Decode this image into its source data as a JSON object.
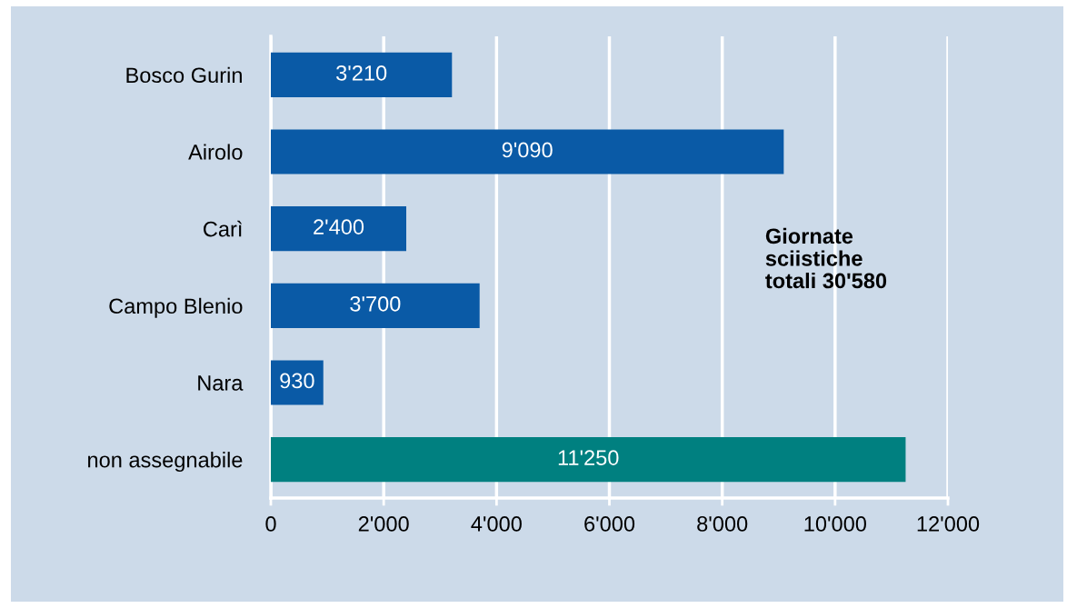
{
  "chart_data": {
    "type": "bar",
    "orientation": "horizontal",
    "categories": [
      "Bosco Gurin",
      "Airolo",
      "Carì",
      "Campo Blenio",
      "Nara",
      "non assegnabile"
    ],
    "values": [
      3210,
      9090,
      2400,
      3700,
      930,
      11250
    ],
    "colors": [
      "#0a5aa6",
      "#0a5aa6",
      "#0a5aa6",
      "#0a5aa6",
      "#0a5aa6",
      "#008080"
    ],
    "value_labels": [
      "3'210",
      "9'090",
      "2'400",
      "3'700",
      "930",
      "11'250"
    ],
    "xlim": [
      0,
      12000
    ],
    "xticks": [
      0,
      {
        "value": 2000,
        "label": "2'000"
      },
      {
        "value": 4000,
        "label": "4'000"
      },
      {
        "value": 6000,
        "label": "6'000"
      },
      {
        "value": 8000,
        "label": "8'000"
      },
      {
        "value": 10000,
        "label": "10'000"
      },
      {
        "value": 12000,
        "label": "12'000"
      }
    ],
    "grid": "x",
    "annotations": [
      "Giornate\nsciistiche\ntotali 30'580"
    ]
  }
}
